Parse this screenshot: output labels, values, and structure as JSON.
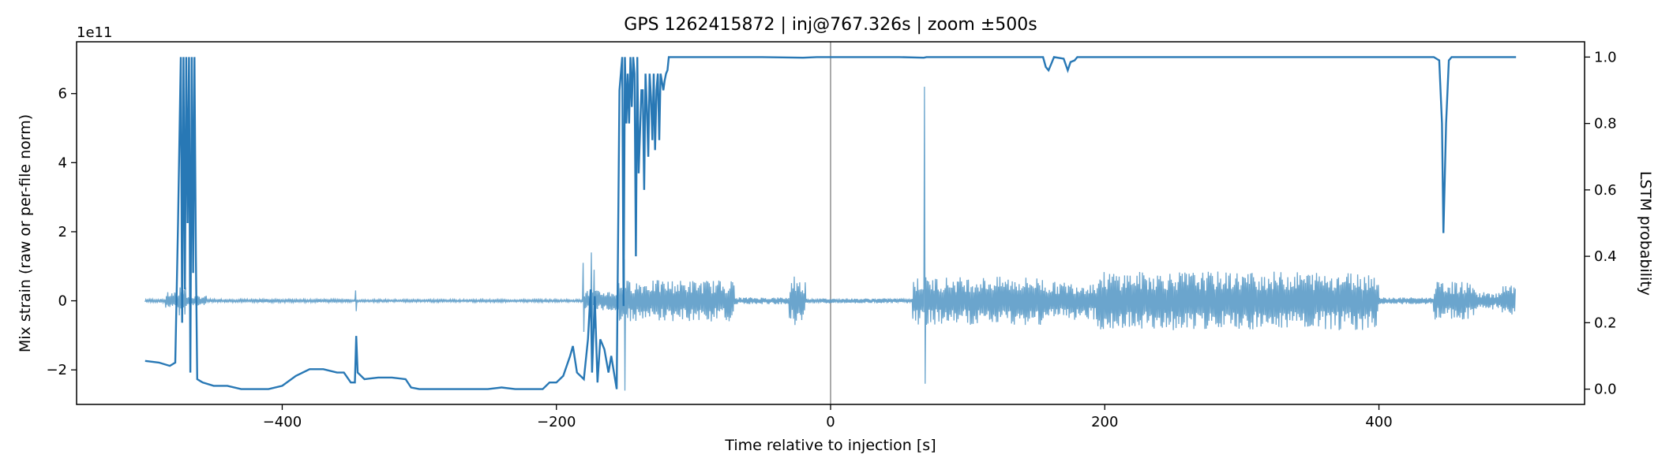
{
  "chart_data": {
    "type": "line",
    "title": "GPS 1262415872 | inj@767.326s | zoom ±500s",
    "xlabel": "Time relative to injection [s]",
    "ylabel_left": "Mix strain (raw or per-file norm)",
    "ylabel_right": "LSTM probability",
    "left_offset_label": "1e11",
    "xlim": [
      -550,
      550
    ],
    "ylim_left": [
      -3.0,
      7.5
    ],
    "ylim_right": [
      -0.046,
      1.046
    ],
    "x_ticks": [
      -400,
      -200,
      0,
      200,
      400
    ],
    "x_tick_labels": [
      "−400",
      "−200",
      "0",
      "200",
      "400"
    ],
    "y_left_ticks": [
      -2,
      0,
      2,
      4,
      6
    ],
    "y_left_tick_labels": [
      "−2",
      "0",
      "2",
      "4",
      "6"
    ],
    "y_right_ticks": [
      0.0,
      0.2,
      0.4,
      0.6,
      0.8,
      1.0
    ],
    "y_right_tick_labels": [
      "0.0",
      "0.2",
      "0.4",
      "0.6",
      "0.8",
      "1.0"
    ],
    "injection_line_x": 0,
    "line_color": "#2878b5",
    "strain_color": "#5b9bc8",
    "injection_color": "#aaaaaa",
    "grid": false,
    "series": [
      {
        "axis": "right",
        "points": [
          [
            -500,
            0.085
          ],
          [
            -490,
            0.08
          ],
          [
            -482,
            0.07
          ],
          [
            -478,
            0.08
          ],
          [
            -476,
            0.5
          ],
          [
            -474,
            1.0
          ],
          [
            -473,
            0.2
          ],
          [
            -472,
            1.0
          ],
          [
            -471,
            0.3
          ],
          [
            -470,
            1.0
          ],
          [
            -469,
            0.5
          ],
          [
            -468,
            1.0
          ],
          [
            -467,
            0.05
          ],
          [
            -466,
            1.0
          ],
          [
            -465,
            0.35
          ],
          [
            -464,
            1.0
          ],
          [
            -463,
            0.4
          ],
          [
            -462,
            0.03
          ],
          [
            -458,
            0.02
          ],
          [
            -450,
            0.01
          ],
          [
            -440,
            0.01
          ],
          [
            -430,
            0.0
          ],
          [
            -420,
            0.0
          ],
          [
            -410,
            0.0
          ],
          [
            -400,
            0.01
          ],
          [
            -390,
            0.04
          ],
          [
            -380,
            0.06
          ],
          [
            -370,
            0.06
          ],
          [
            -360,
            0.05
          ],
          [
            -355,
            0.05
          ],
          [
            -350,
            0.02
          ],
          [
            -347,
            0.02
          ],
          [
            -346,
            0.16
          ],
          [
            -345,
            0.05
          ],
          [
            -340,
            0.03
          ],
          [
            -330,
            0.035
          ],
          [
            -320,
            0.035
          ],
          [
            -310,
            0.03
          ],
          [
            -306,
            0.005
          ],
          [
            -300,
            0.0
          ],
          [
            -280,
            0.0
          ],
          [
            -250,
            0.0
          ],
          [
            -240,
            0.005
          ],
          [
            -230,
            0.0
          ],
          [
            -210,
            0.0
          ],
          [
            -205,
            0.02
          ],
          [
            -200,
            0.02
          ],
          [
            -195,
            0.04
          ],
          [
            -190,
            0.1
          ],
          [
            -188,
            0.13
          ],
          [
            -185,
            0.05
          ],
          [
            -180,
            0.03
          ],
          [
            -177,
            0.15
          ],
          [
            -175,
            0.3
          ],
          [
            -174,
            0.05
          ],
          [
            -172,
            0.28
          ],
          [
            -170,
            0.02
          ],
          [
            -168,
            0.15
          ],
          [
            -165,
            0.12
          ],
          [
            -162,
            0.05
          ],
          [
            -160,
            0.1
          ],
          [
            -156,
            0.0
          ],
          [
            -154,
            0.9
          ],
          [
            -152,
            1.0
          ],
          [
            -151,
            0.25
          ],
          [
            -150,
            1.0
          ],
          [
            -149,
            0.8
          ],
          [
            -148,
            0.95
          ],
          [
            -147,
            0.8
          ],
          [
            -146,
            1.0
          ],
          [
            -145,
            0.85
          ],
          [
            -144,
            1.0
          ],
          [
            -143,
            0.95
          ],
          [
            -142,
            0.4
          ],
          [
            -141,
            1.0
          ],
          [
            -140,
            0.65
          ],
          [
            -138,
            0.9
          ],
          [
            -137,
            0.9
          ],
          [
            -136,
            0.6
          ],
          [
            -135,
            0.95
          ],
          [
            -134,
            0.85
          ],
          [
            -133,
            0.7
          ],
          [
            -132,
            0.95
          ],
          [
            -131,
            0.88
          ],
          [
            -130,
            0.75
          ],
          [
            -129,
            0.95
          ],
          [
            -128,
            0.72
          ],
          [
            -127,
            0.9
          ],
          [
            -126,
            0.95
          ],
          [
            -125,
            0.75
          ],
          [
            -124,
            0.95
          ],
          [
            -122,
            0.9
          ],
          [
            -121,
            0.93
          ],
          [
            -120,
            0.95
          ],
          [
            -119,
            0.96
          ],
          [
            -118,
            1.0
          ],
          [
            -100,
            1.0
          ],
          [
            -50,
            1.0
          ],
          [
            -20,
            0.998
          ],
          [
            -10,
            1.0
          ],
          [
            0,
            1.0
          ],
          [
            50,
            1.0
          ],
          [
            68,
            0.998
          ],
          [
            70,
            1.0
          ],
          [
            100,
            1.0
          ],
          [
            150,
            1.0
          ],
          [
            155,
            1.0
          ],
          [
            157,
            0.97
          ],
          [
            159,
            0.96
          ],
          [
            161,
            0.98
          ],
          [
            163,
            1.0
          ],
          [
            170,
            0.995
          ],
          [
            173,
            0.96
          ],
          [
            175,
            0.985
          ],
          [
            178,
            0.99
          ],
          [
            180,
            1.0
          ],
          [
            200,
            1.0
          ],
          [
            300,
            1.0
          ],
          [
            400,
            1.0
          ],
          [
            440,
            1.0
          ],
          [
            444,
            0.99
          ],
          [
            446,
            0.8
          ],
          [
            447,
            0.47
          ],
          [
            448,
            0.63
          ],
          [
            449,
            0.8
          ],
          [
            451,
            0.99
          ],
          [
            453,
            1.0
          ],
          [
            470,
            1.0
          ],
          [
            500,
            1.0
          ]
        ]
      },
      {
        "axis": "left",
        "segments": [
          {
            "x0": -500,
            "x1": -485,
            "amp": 0.05
          },
          {
            "x0": -485,
            "x1": -475,
            "amp": 0.25
          },
          {
            "x0": -475,
            "x1": -470,
            "amp": 0.5
          },
          {
            "x0": -470,
            "x1": -455,
            "amp": 0.15
          },
          {
            "x0": -455,
            "x1": -350,
            "amp": 0.05
          },
          {
            "x0": -350,
            "x1": -180,
            "amp": 0.04
          },
          {
            "x0": -180,
            "x1": -155,
            "amp": 0.3
          },
          {
            "x0": -155,
            "x1": -70,
            "amp": 0.6
          },
          {
            "x0": -70,
            "x1": -30,
            "amp": 0.1
          },
          {
            "x0": -30,
            "x1": -18,
            "amp": 0.6
          },
          {
            "x0": -18,
            "x1": 60,
            "amp": 0.07
          },
          {
            "x0": 60,
            "x1": 110,
            "amp": 0.7
          },
          {
            "x0": 110,
            "x1": 155,
            "amp": 0.7
          },
          {
            "x0": 155,
            "x1": 195,
            "amp": 0.55
          },
          {
            "x0": 195,
            "x1": 400,
            "amp": 0.85
          },
          {
            "x0": 400,
            "x1": 440,
            "amp": 0.1
          },
          {
            "x0": 440,
            "x1": 470,
            "amp": 0.55
          },
          {
            "x0": 470,
            "x1": 490,
            "amp": 0.25
          },
          {
            "x0": 490,
            "x1": 500,
            "amp": 0.45
          }
        ],
        "spikes": [
          [
            -346,
            0.3,
            -0.3
          ],
          [
            -180,
            1.1,
            -0.9
          ],
          [
            -174,
            1.4,
            -1.1
          ],
          [
            -172,
            0.9,
            -0.8
          ],
          [
            -150,
            1.2,
            -2.6
          ],
          [
            69,
            6.2,
            -2.4
          ],
          [
            -26,
            0.7,
            -0.7
          ]
        ]
      }
    ]
  }
}
